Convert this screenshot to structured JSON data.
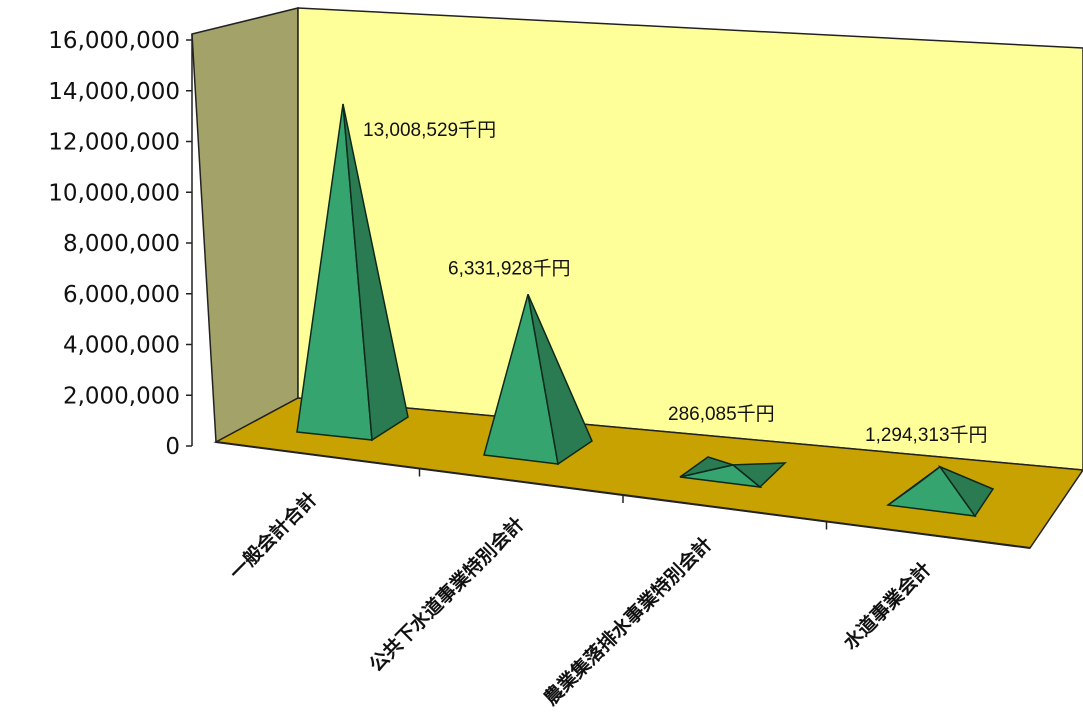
{
  "chart_data": {
    "type": "bar",
    "style": "3d-pyramid",
    "categories": [
      "一般会計合計",
      "公共下水道事業特別会計",
      "農業集落排水事業特別会計",
      "水道事業会計"
    ],
    "values": [
      13008529,
      6331928,
      286085,
      1294313
    ],
    "data_labels": [
      "13,008,529千円",
      "6,331,928千円",
      "286,085千円",
      "1,294,313千円"
    ],
    "title": "",
    "xlabel": "",
    "ylabel": "",
    "ylim": [
      0,
      16000000
    ],
    "y_ticks": [
      0,
      2000000,
      4000000,
      6000000,
      8000000,
      10000000,
      12000000,
      14000000,
      16000000
    ],
    "y_tick_labels": [
      "0",
      "2,000,000",
      "4,000,000",
      "6,000,000",
      "8,000,000",
      "10,000,000",
      "12,000,000",
      "14,000,000",
      "16,000,000"
    ],
    "grid": false,
    "legend": "none",
    "colors": {
      "back_wall": "#ffff99",
      "side_wall": "#a3a268",
      "floor": "#c8a200",
      "pyramid_front": "#36a46e",
      "pyramid_side": "#2a7a52",
      "pyramid_outline": "#0d2a1c"
    }
  }
}
